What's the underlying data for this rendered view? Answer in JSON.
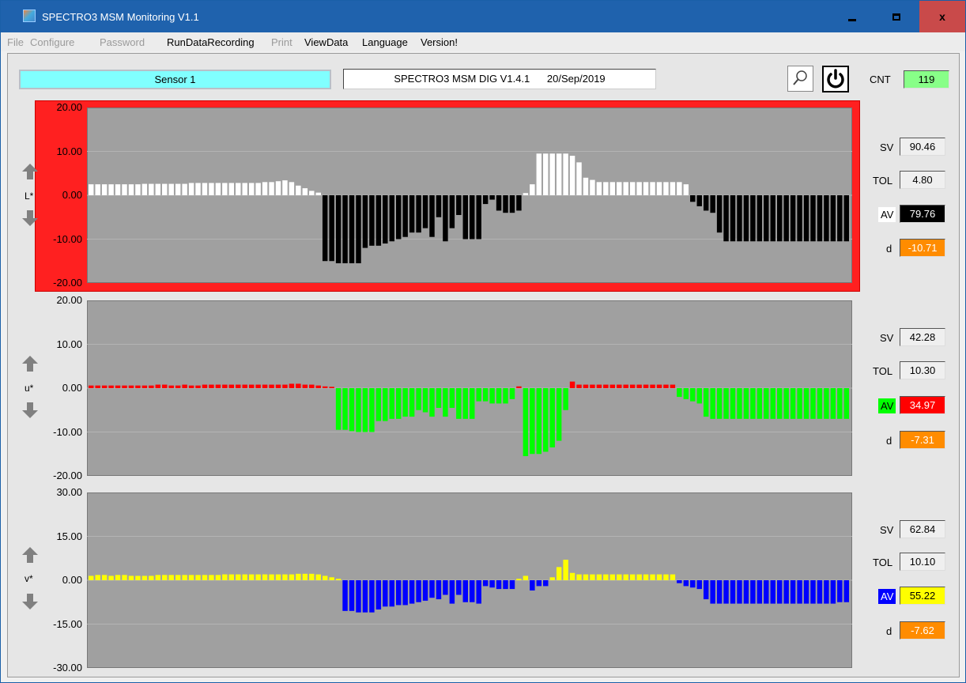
{
  "window": {
    "title": "SPECTRO3 MSM Monitoring V1.1",
    "close_glyph": "x"
  },
  "menu": [
    {
      "label": "File",
      "enabled": false
    },
    {
      "label": "Configure",
      "enabled": false
    },
    {
      "label": "Password",
      "enabled": false
    },
    {
      "label": "RunDataRecording",
      "enabled": true
    },
    {
      "label": "Print",
      "enabled": false
    },
    {
      "label": "ViewData",
      "enabled": true
    },
    {
      "label": "Language",
      "enabled": true
    },
    {
      "label": "Version!",
      "enabled": true
    }
  ],
  "header": {
    "sensor": "Sensor 1",
    "version": "SPECTRO3 MSM DIG V1.4.1      20/Sep/2019",
    "cnt_label": "CNT",
    "cnt_value": "119",
    "zoom_icon": "magnifier-icon",
    "power_icon": "power-icon"
  },
  "colors": {
    "plot_bg": "#a0a0a0",
    "alarm_frame": "#ff2020",
    "l_pos": "#ffffff",
    "l_neg": "#000000",
    "u_pos": "#ff0000",
    "u_neg": "#00ff00",
    "v_pos": "#ffff00",
    "v_neg": "#0000ff",
    "d_bg": "#ff8c00"
  },
  "panels": [
    {
      "id": "L",
      "axis_label": "L*",
      "sv_label": "SV",
      "sv": "90.46",
      "tol_label": "TOL",
      "tol": "4.80",
      "av_label": "AV",
      "av": "79.76",
      "d_label": "d",
      "d": "-10.71",
      "alarm": true
    },
    {
      "id": "u",
      "axis_label": "u*",
      "sv_label": "SV",
      "sv": "42.28",
      "tol_label": "TOL",
      "tol": "10.30",
      "av_label": "AV",
      "av": "34.97",
      "d_label": "d",
      "d": "-7.31",
      "alarm": false
    },
    {
      "id": "v",
      "axis_label": "v*",
      "sv_label": "SV",
      "sv": "62.84",
      "tol_label": "TOL",
      "tol": "10.10",
      "av_label": "AV",
      "av": "55.22",
      "d_label": "d",
      "d": "-7.62",
      "alarm": false
    }
  ],
  "chart_data": [
    {
      "type": "bar",
      "ylim": [
        -20,
        20
      ],
      "yticks": [
        "20.00",
        "10.00",
        "0.00",
        "-10.00",
        "-20.00"
      ],
      "values": [
        2.5,
        2.5,
        2.5,
        2.5,
        2.5,
        2.5,
        2.5,
        2.5,
        2.6,
        2.6,
        2.6,
        2.6,
        2.6,
        2.6,
        2.6,
        2.8,
        2.8,
        2.8,
        2.8,
        2.8,
        2.8,
        2.8,
        2.8,
        2.8,
        2.8,
        2.8,
        3.0,
        3.0,
        3.2,
        3.4,
        3.0,
        2.2,
        1.6,
        1.0,
        0.6,
        -15.0,
        -15.0,
        -15.5,
        -15.5,
        -15.5,
        -15.5,
        -12.0,
        -11.5,
        -11.5,
        -11.0,
        -10.5,
        -10.0,
        -9.5,
        -8.5,
        -8.5,
        -7.5,
        -9.5,
        -5.0,
        -10.5,
        -7.5,
        -4.5,
        -10.0,
        -10.0,
        -10.0,
        -2.0,
        -1.0,
        -3.5,
        -4.0,
        -4.0,
        -3.5,
        0.5,
        2.5,
        9.5,
        9.5,
        9.5,
        9.5,
        9.5,
        9.0,
        7.5,
        4.0,
        3.5,
        3.0,
        3.0,
        3.0,
        3.0,
        3.0,
        3.0,
        3.0,
        3.0,
        3.0,
        3.0,
        3.0,
        3.0,
        3.0,
        2.5,
        -1.5,
        -2.5,
        -3.5,
        -4.0,
        -8.5,
        -10.5,
        -10.5,
        -10.5,
        -10.5,
        -10.5,
        -10.5,
        -10.5,
        -10.5,
        -10.5,
        -10.5,
        -10.5,
        -10.5,
        -10.5,
        -10.5,
        -10.5,
        -10.5,
        -10.5,
        -10.5,
        -10.5
      ]
    },
    {
      "type": "bar",
      "ylim": [
        -20,
        20
      ],
      "yticks": [
        "20.00",
        "10.00",
        "0.00",
        "-10.00",
        "-20.00"
      ],
      "values": [
        0.6,
        0.6,
        0.6,
        0.6,
        0.6,
        0.6,
        0.6,
        0.6,
        0.6,
        0.6,
        0.8,
        0.8,
        0.6,
        0.6,
        0.8,
        0.6,
        0.6,
        0.8,
        0.8,
        0.8,
        0.8,
        0.8,
        0.8,
        0.8,
        0.8,
        0.8,
        0.8,
        0.8,
        0.8,
        0.8,
        1.0,
        1.0,
        0.8,
        0.8,
        0.6,
        0.4,
        0.3,
        -9.5,
        -9.5,
        -9.8,
        -10.0,
        -10.0,
        -10.0,
        -7.5,
        -7.5,
        -7.0,
        -7.0,
        -6.5,
        -6.5,
        -5.0,
        -5.5,
        -6.5,
        -4.5,
        -6.5,
        -4.5,
        -7.0,
        -7.0,
        -7.0,
        -3.0,
        -3.0,
        -3.5,
        -3.5,
        -3.5,
        -2.5,
        0.4,
        -15.5,
        -15.0,
        -15.0,
        -14.5,
        -13.5,
        -12.0,
        -5.0,
        1.5,
        0.8,
        0.8,
        0.8,
        0.8,
        0.8,
        0.8,
        0.8,
        0.8,
        0.8,
        0.8,
        0.8,
        0.8,
        0.8,
        0.8,
        0.8,
        -2.0,
        -2.5,
        -3.0,
        -3.5,
        -6.5,
        -7.0,
        -7.0,
        -7.0,
        -7.0,
        -7.0,
        -7.0,
        -7.0,
        -7.0,
        -7.0,
        -7.0,
        -7.0,
        -7.0,
        -7.0,
        -7.0,
        -7.0,
        -7.0,
        -7.0,
        -7.0,
        -7.0,
        -7.0,
        -7.0
      ]
    },
    {
      "type": "bar",
      "ylim": [
        -30,
        30
      ],
      "yticks": [
        "30.00",
        "15.00",
        "0.00",
        "-15.00",
        "-30.00"
      ],
      "values": [
        1.5,
        1.8,
        1.8,
        1.5,
        1.8,
        1.8,
        1.5,
        1.5,
        1.5,
        1.5,
        1.8,
        1.8,
        1.8,
        1.8,
        1.8,
        1.8,
        1.8,
        1.8,
        1.8,
        1.8,
        2.0,
        2.0,
        2.0,
        2.0,
        2.0,
        2.0,
        2.0,
        2.0,
        2.0,
        2.0,
        2.0,
        2.2,
        2.2,
        2.2,
        2.0,
        1.5,
        1.0,
        0.5,
        -10.5,
        -10.5,
        -11.0,
        -11.0,
        -11.0,
        -10.0,
        -9.0,
        -9.0,
        -8.5,
        -8.5,
        -8.0,
        -7.5,
        -7.0,
        -6.0,
        -6.5,
        -5.0,
        -8.0,
        -5.0,
        -7.5,
        -7.5,
        -8.0,
        -2.0,
        -2.5,
        -3.0,
        -3.0,
        -3.0,
        0.5,
        1.5,
        -3.5,
        -2.0,
        -2.0,
        1.0,
        4.5,
        7.0,
        2.5,
        2.0,
        2.0,
        2.0,
        2.0,
        2.0,
        2.0,
        2.0,
        2.0,
        2.0,
        2.0,
        2.0,
        2.0,
        2.0,
        2.0,
        2.0,
        -1.0,
        -2.0,
        -2.5,
        -3.0,
        -6.5,
        -8.0,
        -8.0,
        -8.0,
        -8.0,
        -8.0,
        -8.0,
        -8.0,
        -8.0,
        -8.0,
        -8.0,
        -8.0,
        -8.0,
        -8.0,
        -8.0,
        -8.0,
        -8.0,
        -8.0,
        -8.0,
        -8.0,
        -7.5,
        -7.5
      ]
    }
  ]
}
